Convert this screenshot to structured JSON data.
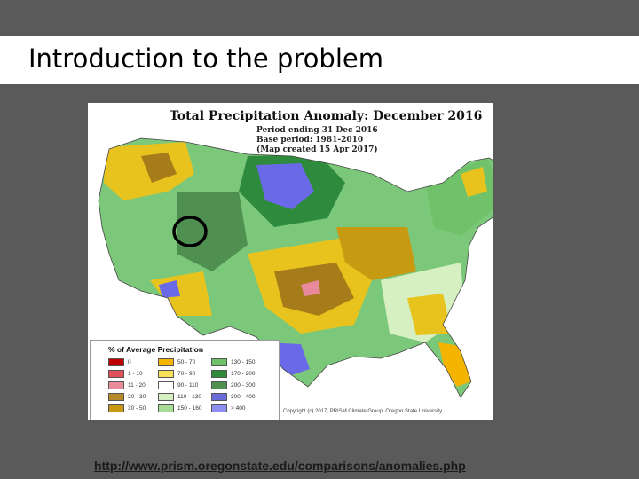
{
  "slide": {
    "title": "Introduction to the problem",
    "link_text": "http://www.prism.oregonstate.edu/comparisons/anomalies.php"
  },
  "map": {
    "heading": "Total Precipitation Anomaly: December 2016",
    "lines": [
      "Period ending 31 Dec 2016",
      "Base period: 1981-2010",
      "(Map created 15 Apr 2017)"
    ],
    "copyright": "Copyright (c) 2017, PRISM Climate Group, Oregon State University",
    "highlight_marker": "circle",
    "colors": {
      "dry_extreme": "#b8141e",
      "dry": "#a67c1a",
      "below": "#e8c31e",
      "near_normal": "#ffffff",
      "above": "#7cc87a",
      "wet": "#2e8a3c",
      "very_wet": "#6a6ae8"
    }
  },
  "legend": {
    "title": "% of Average Precipitation",
    "items": [
      {
        "label": "0",
        "color": "#c00000"
      },
      {
        "label": "50 - 70",
        "color": "#f5b400"
      },
      {
        "label": "130 - 150",
        "color": "#6fc26a"
      },
      {
        "label": "1 - 10",
        "color": "#e0505a"
      },
      {
        "label": "70 - 90",
        "color": "#f7e25a"
      },
      {
        "label": "170 - 200",
        "color": "#2f8a3a"
      },
      {
        "label": "11 - 20",
        "color": "#e88a9c"
      },
      {
        "label": "90 - 110",
        "color": "#ffffff"
      },
      {
        "label": "200 - 300",
        "color": "#4f8f50"
      },
      {
        "label": "20 - 30",
        "color": "#b58a2a"
      },
      {
        "label": "110 - 130",
        "color": "#d7f0c2"
      },
      {
        "label": "300 - 400",
        "color": "#6b6bd8"
      },
      {
        "label": "30 - 50",
        "color": "#c89a12"
      },
      {
        "label": "150 - 160",
        "color": "#a9dc96"
      },
      {
        "label": "> 400",
        "color": "#8e8ef0"
      }
    ]
  }
}
